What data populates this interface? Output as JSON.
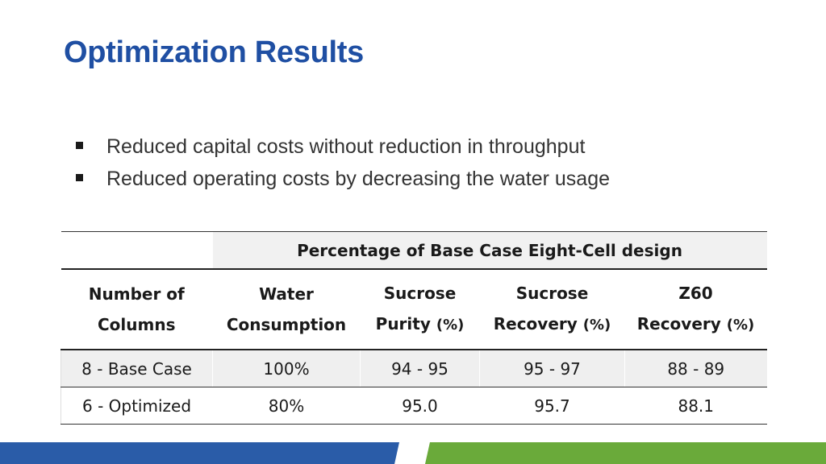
{
  "slide": {
    "title": "Optimization Results",
    "bullets": [
      "Reduced capital costs without reduction in throughput",
      "Reduced operating costs by decreasing the water usage"
    ]
  },
  "table": {
    "span_header": "Percentage of Base Case Eight-Cell design",
    "headers": [
      {
        "line1": "Number of",
        "line2": "Columns",
        "unit": ""
      },
      {
        "line1": "Water",
        "line2": "Consumption",
        "unit": ""
      },
      {
        "line1": "Sucrose",
        "line2": "Purity",
        "unit": "(%)"
      },
      {
        "line1": "Sucrose",
        "line2": "Recovery",
        "unit": "(%)"
      },
      {
        "line1": "Z60",
        "line2": "Recovery",
        "unit": "(%)"
      }
    ],
    "rows": [
      [
        "8 - Base Case",
        "100%",
        "94 - 95",
        "95 - 97",
        "88 - 89"
      ],
      [
        "6 - Optimized",
        "80%",
        "95.0",
        "95.7",
        "88.1"
      ]
    ]
  },
  "colors": {
    "title": "#1f4fa3",
    "footer_blue": "#2a5ca8",
    "footer_green": "#6aaa3a"
  }
}
